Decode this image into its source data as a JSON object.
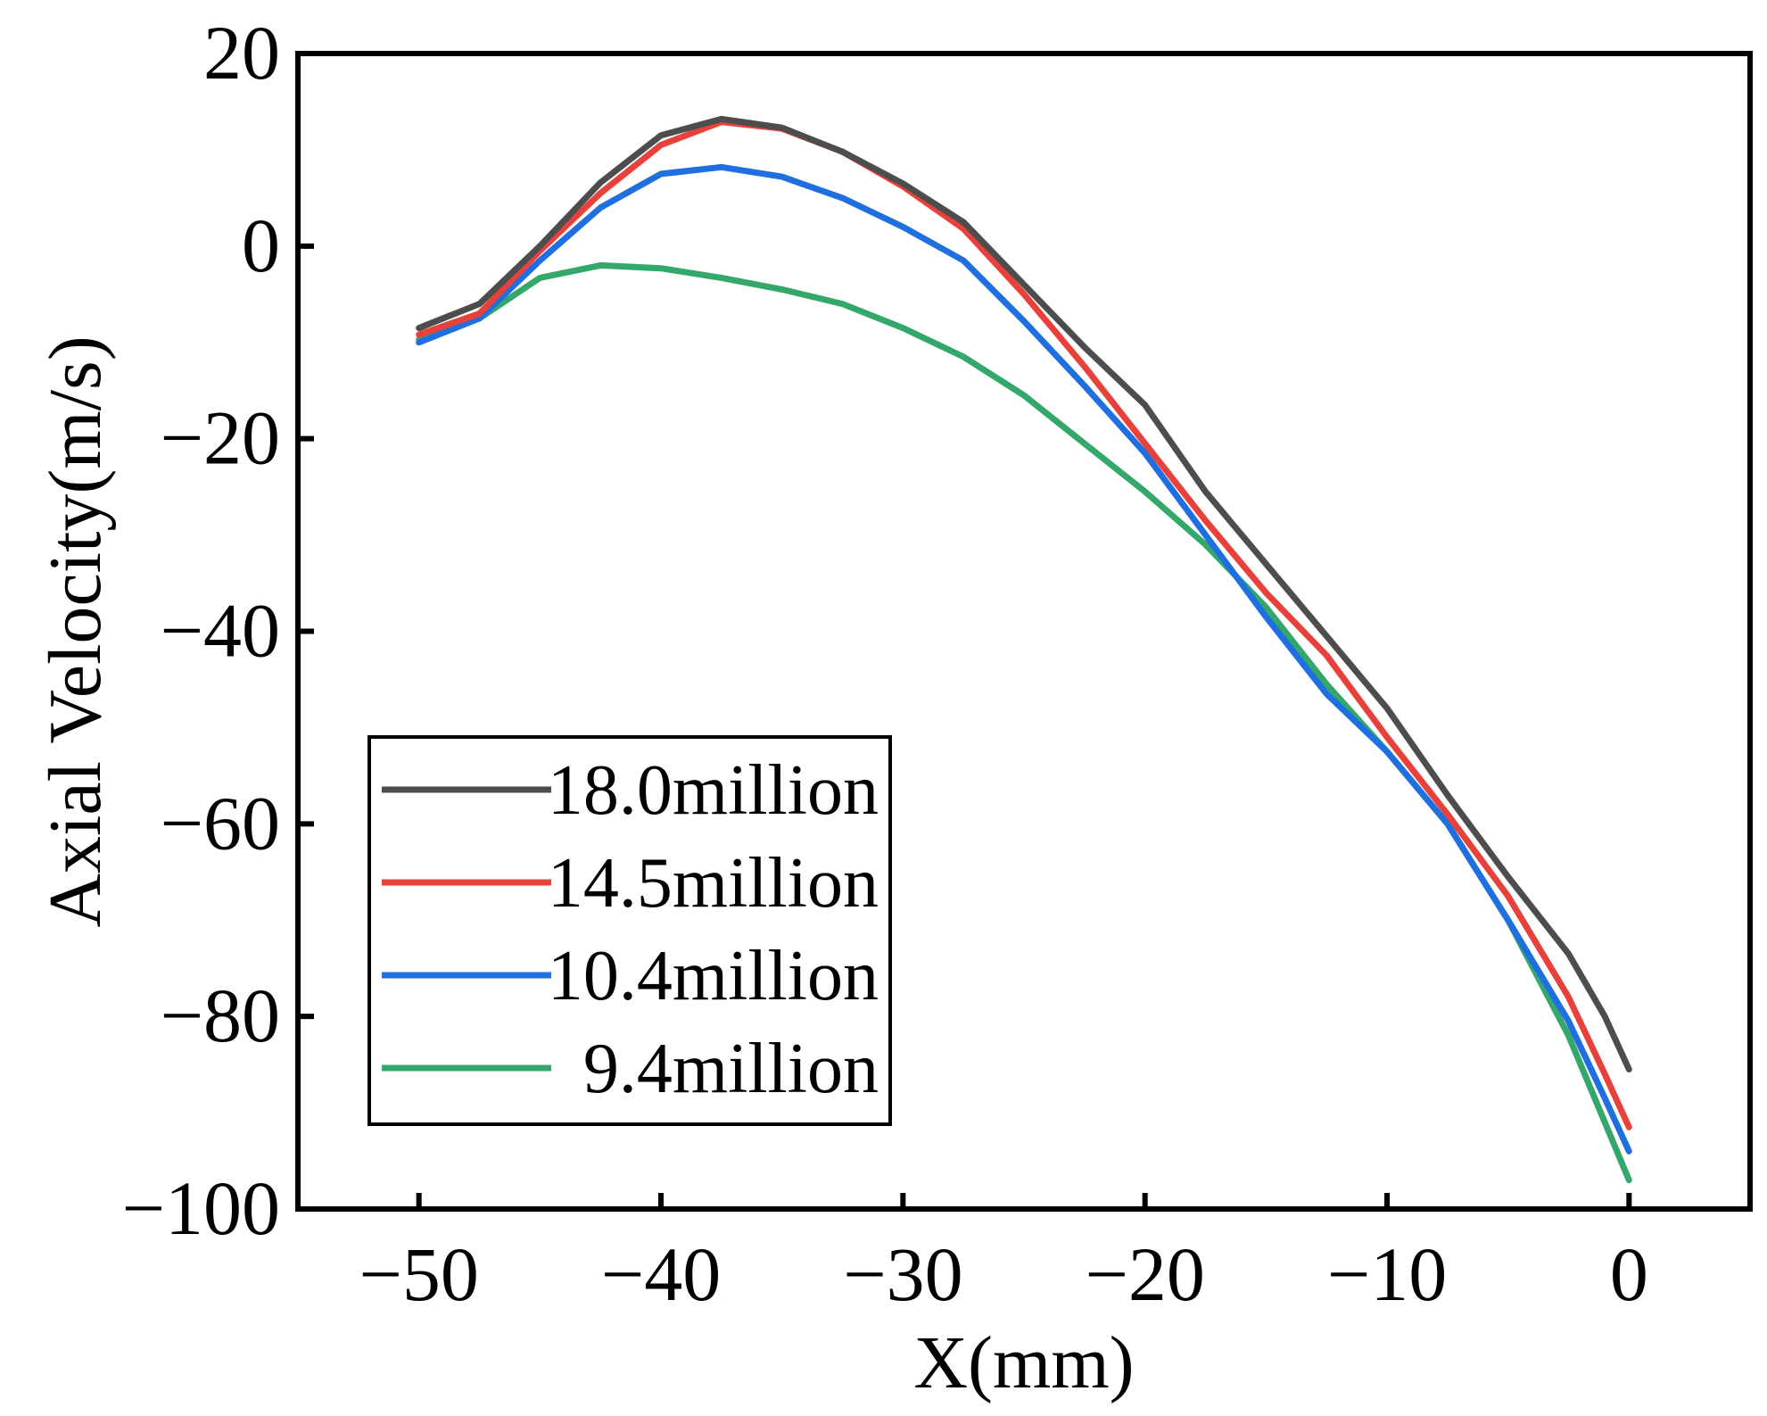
{
  "chart_data": {
    "type": "line",
    "title": "",
    "xlabel": "X(mm)",
    "ylabel": "Axial Velocity(m/s)",
    "xlim": [
      -55,
      5
    ],
    "ylim": [
      -100,
      20
    ],
    "xticks": [
      -50,
      -40,
      -30,
      -20,
      -10,
      0
    ],
    "yticks": [
      20,
      0,
      -20,
      -40,
      -60,
      -80,
      -100
    ],
    "xtick_labels": [
      "−50",
      "−40",
      "−30",
      "−20",
      "−10",
      "0"
    ],
    "ytick_labels": [
      "20",
      "0",
      "−20",
      "−40",
      "−60",
      "−80",
      "−100"
    ],
    "grid": false,
    "legend_position": "bottom-left",
    "x": [
      -50,
      -47.5,
      -45,
      -42.5,
      -40,
      -37.5,
      -35,
      -32.5,
      -30,
      -27.5,
      -25,
      -22.5,
      -20,
      -17.5,
      -15,
      -12.5,
      -10,
      -7.5,
      -5,
      -2.5,
      -1,
      0
    ],
    "series": [
      {
        "name": "18.0million",
        "color": "#4d4d4d",
        "values": [
          -8.5,
          -6,
          0,
          6.6,
          11.5,
          13.2,
          12.3,
          9.8,
          6.5,
          2.5,
          -4,
          -10.5,
          -16.5,
          -25.5,
          -33,
          -40.5,
          -48,
          -57,
          -65.5,
          -73.5,
          -80,
          -85.5
        ]
      },
      {
        "name": "14.5million",
        "color": "#e8413c",
        "values": [
          -9.2,
          -7,
          -0.5,
          5.5,
          10.5,
          12.9,
          12.2,
          9.8,
          6.2,
          1.8,
          -5,
          -12.5,
          -20.5,
          -28.5,
          -36,
          -42.5,
          -51,
          -59,
          -67.5,
          -78,
          -86,
          -91.5
        ]
      },
      {
        "name": "10.4million",
        "color": "#1f6fe0",
        "values": [
          -10,
          -7.5,
          -1.5,
          4,
          7.5,
          8.2,
          7.2,
          5,
          2,
          -1.5,
          -7.8,
          -14.5,
          -21.5,
          -30,
          -38.5,
          -46.5,
          -52.5,
          -60,
          -70,
          -80.5,
          -88.5,
          -94
        ]
      },
      {
        "name": "9.4million",
        "color": "#33a86a",
        "values": [
          -9.7,
          -7.5,
          -3.3,
          -2,
          -2.3,
          -3.3,
          -4.5,
          -6,
          -8.5,
          -11.5,
          -15.5,
          -20.5,
          -25.5,
          -31,
          -37.5,
          -45.5,
          -52.5,
          -60,
          -70,
          -82,
          -91,
          -97
        ]
      }
    ]
  }
}
